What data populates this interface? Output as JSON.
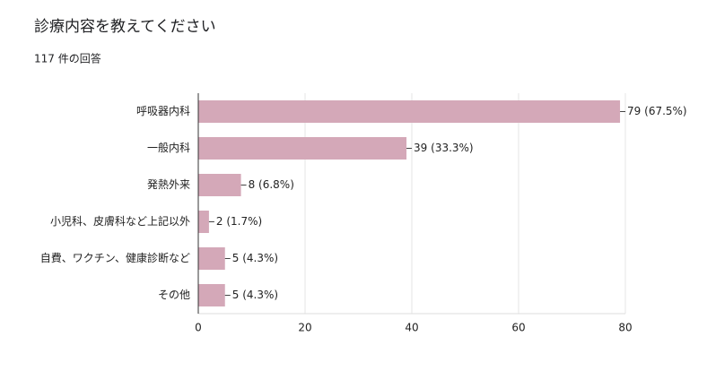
{
  "chart_data": {
    "type": "bar",
    "title": "診療内容を教えてください",
    "subtitle": "117 件の回答",
    "categories": [
      "呼吸器内科",
      "一般内科",
      "発熱外来",
      "小児科、皮膚科など上記以外",
      "自費、ワクチン、健康診断など",
      "その他"
    ],
    "values": [
      79,
      39,
      8,
      2,
      5,
      5
    ],
    "value_labels": [
      "79 (67.5%)",
      "39 (33.3%)",
      "8 (6.8%)",
      "2 (1.7%)",
      "5 (4.3%)",
      "5 (4.3%)"
    ],
    "color": "#d4a8b8",
    "xlim": [
      0,
      80
    ],
    "xticks": [
      0,
      20,
      40,
      60,
      80
    ],
    "grid": true
  }
}
